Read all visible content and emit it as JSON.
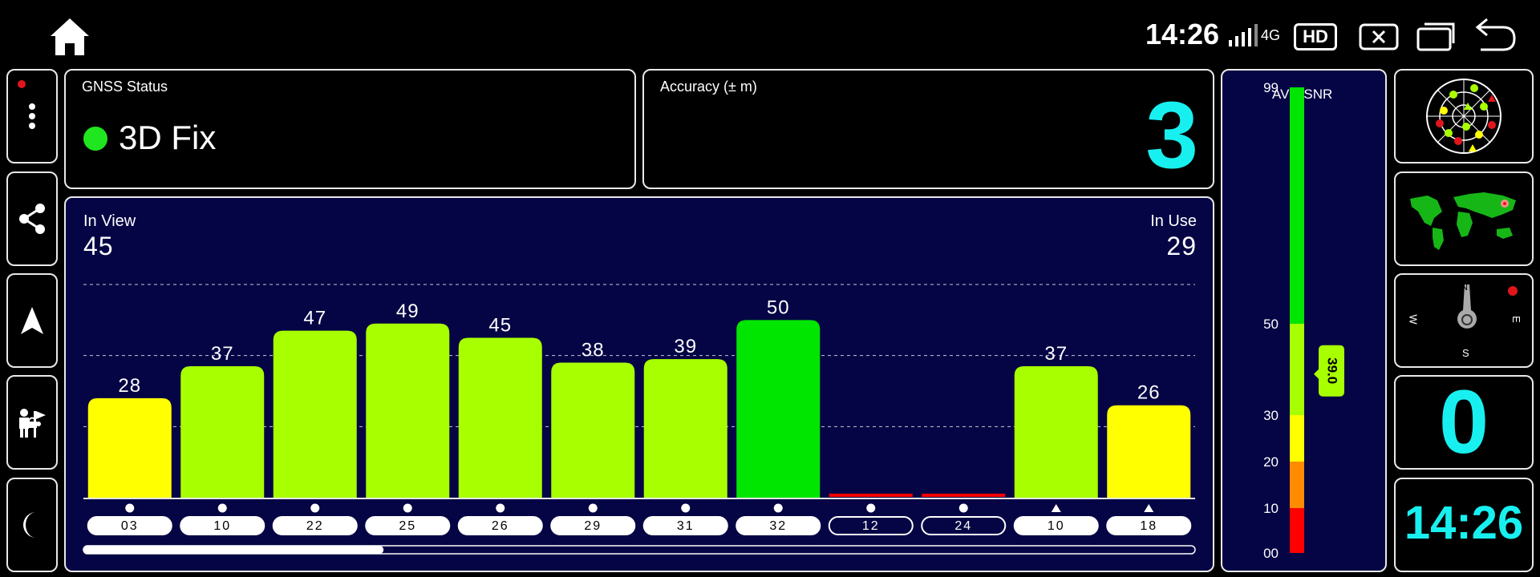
{
  "status_bar": {
    "time": "14:26",
    "network": "4G",
    "hd_label": "HD",
    "icons": [
      "home-icon",
      "signal-icon",
      "hd-icon",
      "close-window-icon",
      "recent-apps-icon",
      "back-icon"
    ]
  },
  "left_rail": {
    "icons": [
      "more-vert-icon",
      "share-icon",
      "navigation-arrow-icon",
      "people-flag-icon",
      "night-mode-icon"
    ]
  },
  "gnss_status": {
    "title": "GNSS Status",
    "value": "3D Fix",
    "dot_color": "#1fe61f"
  },
  "accuracy": {
    "title": "Accuracy (± m)",
    "value": "3"
  },
  "in_view": {
    "label": "In View",
    "value": "45"
  },
  "in_use": {
    "label": "In Use",
    "value": "29"
  },
  "avg_snr": {
    "title": "AVG SNR",
    "value": "39.0",
    "ticks": [
      "99",
      "50",
      "30",
      "20",
      "10",
      "00"
    ]
  },
  "right_rail": {
    "icons": [
      "sky-plot-icon",
      "world-map-icon",
      "compass-icon"
    ],
    "compass_labels": [
      "N",
      "E",
      "S",
      "W"
    ],
    "big_value": "0",
    "clock": "14:26"
  },
  "colors": {
    "green": "#00e600",
    "yellow_green": "#a8ff00",
    "yellow": "#ffff00",
    "orange": "#ff8c00",
    "red": "#ff0000",
    "cyan": "#18f0f0",
    "navy": "#050545"
  },
  "chart_data": {
    "type": "bar",
    "categories": [
      "03",
      "10",
      "22",
      "25",
      "26",
      "29",
      "31",
      "32",
      "12",
      "24",
      "10",
      "18"
    ],
    "values": [
      28,
      37,
      47,
      49,
      45,
      38,
      39,
      50,
      0,
      0,
      37,
      26
    ],
    "value_labels": [
      "28",
      "37",
      "47",
      "49",
      "45",
      "38",
      "39",
      "50",
      "",
      "",
      "37",
      "26"
    ],
    "markers": [
      "circle",
      "circle",
      "circle",
      "circle",
      "circle",
      "circle",
      "circle",
      "circle",
      "circle",
      "circle",
      "triangle",
      "triangle"
    ],
    "in_use": [
      true,
      true,
      true,
      true,
      true,
      true,
      true,
      true,
      false,
      false,
      true,
      true
    ],
    "colors": [
      "#ffff00",
      "#a8ff00",
      "#a8ff00",
      "#a8ff00",
      "#a8ff00",
      "#a8ff00",
      "#a8ff00",
      "#00e600",
      "#ff0000",
      "#ff0000",
      "#a8ff00",
      "#ffff00"
    ],
    "ylim": [
      0,
      60
    ],
    "gridlines": [
      20,
      40,
      60
    ],
    "scroll_fraction": 0.27
  },
  "snr_scale": {
    "bands": [
      {
        "from": 0,
        "to": 10,
        "color": "#ff0000"
      },
      {
        "from": 10,
        "to": 20,
        "color": "#ff8c00"
      },
      {
        "from": 20,
        "to": 30,
        "color": "#ffff00"
      },
      {
        "from": 30,
        "to": 50,
        "color": "#a8ff00"
      },
      {
        "from": 50,
        "to": 99,
        "color": "#00e600"
      }
    ],
    "indicator_value": 39.0
  }
}
